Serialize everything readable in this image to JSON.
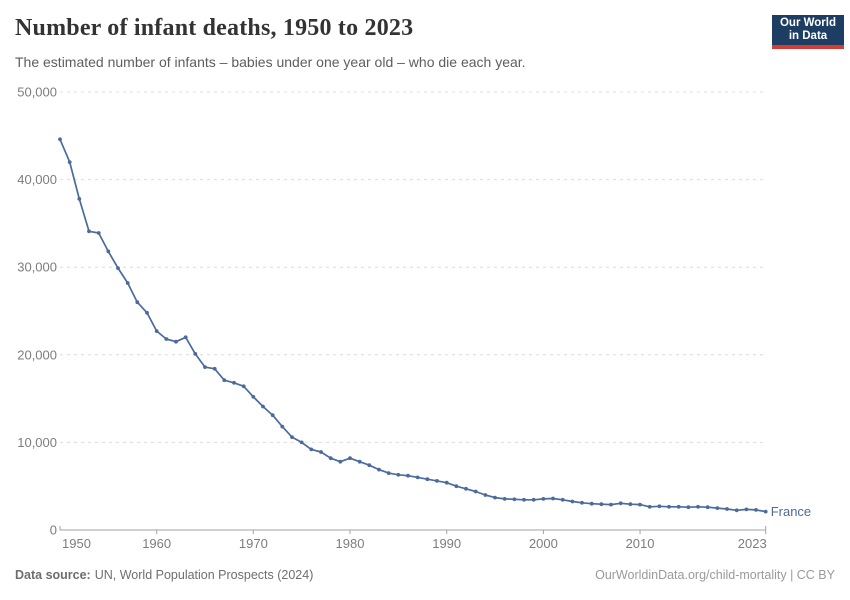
{
  "page": {
    "header": {
      "title": "Number of infant deaths, 1950 to 2023",
      "subtitle": "The estimated number of infants – babies under one year old – who die each year.",
      "logo": {
        "line1": "Our World",
        "line2": "in Data",
        "bg_color": "#1D3D63",
        "bar_color": "#D73C34"
      }
    },
    "footer": {
      "source_label": "Data source:",
      "source_text": "UN, World Population Prospects (2024)",
      "link_text": "OurWorldinData.org/child-mortality | CC BY"
    }
  },
  "chart_data": {
    "type": "line",
    "title": "Number of infant deaths, 1950 to 2023",
    "subtitle": "The estimated number of infants – babies under one year old – who die each year.",
    "xlabel": "",
    "ylabel": "",
    "xlim": [
      1950,
      2023
    ],
    "ylim": [
      0,
      50000
    ],
    "grid": "horizontal-dashed",
    "legend": "end-of-line-label",
    "line_color": "#4C6A9C",
    "axis_color": "#a3a3a3",
    "grid_color": "#dcdcdc",
    "yticks": [
      {
        "value": 0,
        "label": "0"
      },
      {
        "value": 10000,
        "label": "10,000"
      },
      {
        "value": 20000,
        "label": "20,000"
      },
      {
        "value": 30000,
        "label": "30,000"
      },
      {
        "value": 40000,
        "label": "40,000"
      },
      {
        "value": 50000,
        "label": "50,000"
      }
    ],
    "xticks": [
      {
        "value": 1950,
        "label": "1950"
      },
      {
        "value": 1960,
        "label": "1960"
      },
      {
        "value": 1970,
        "label": "1970"
      },
      {
        "value": 1980,
        "label": "1980"
      },
      {
        "value": 1990,
        "label": "1990"
      },
      {
        "value": 2000,
        "label": "2000"
      },
      {
        "value": 2010,
        "label": "2010"
      },
      {
        "value": 2023,
        "label": "2023"
      }
    ],
    "series": [
      {
        "name": "France",
        "x": [
          1950,
          1951,
          1952,
          1953,
          1954,
          1955,
          1956,
          1957,
          1958,
          1959,
          1960,
          1961,
          1962,
          1963,
          1964,
          1965,
          1966,
          1967,
          1968,
          1969,
          1970,
          1971,
          1972,
          1973,
          1974,
          1975,
          1976,
          1977,
          1978,
          1979,
          1980,
          1981,
          1982,
          1983,
          1984,
          1985,
          1986,
          1987,
          1988,
          1989,
          1990,
          1991,
          1992,
          1993,
          1994,
          1995,
          1996,
          1997,
          1998,
          1999,
          2000,
          2001,
          2002,
          2003,
          2004,
          2005,
          2006,
          2007,
          2008,
          2009,
          2010,
          2011,
          2012,
          2013,
          2014,
          2015,
          2016,
          2017,
          2018,
          2019,
          2020,
          2021,
          2022,
          2023
        ],
        "values": [
          44600,
          42000,
          37800,
          34100,
          33900,
          31800,
          29900,
          28200,
          26000,
          24800,
          22700,
          21800,
          21500,
          22000,
          20100,
          18600,
          18400,
          17100,
          16800,
          16400,
          15200,
          14100,
          13100,
          11800,
          10600,
          10000,
          9200,
          8900,
          8200,
          7800,
          8200,
          7800,
          7400,
          6900,
          6500,
          6300,
          6200,
          6000,
          5800,
          5600,
          5400,
          5000,
          4700,
          4400,
          4000,
          3700,
          3550,
          3500,
          3450,
          3450,
          3550,
          3600,
          3450,
          3250,
          3100,
          3000,
          2950,
          2900,
          3050,
          2950,
          2900,
          2650,
          2700,
          2650,
          2650,
          2600,
          2650,
          2600,
          2500,
          2400,
          2250,
          2350,
          2300,
          2100
        ]
      }
    ]
  }
}
